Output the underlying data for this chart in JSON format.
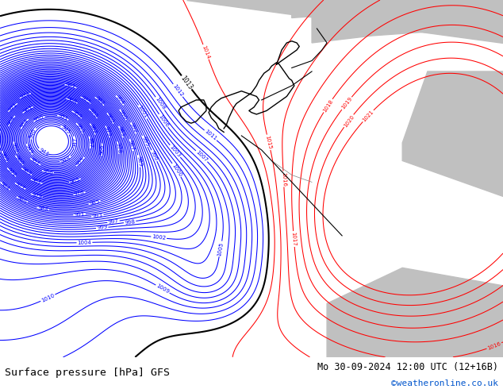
{
  "title_left": "Surface pressure [hPa] GFS",
  "title_right": "Mo 30-09-2024 12:00 UTC (12+16B)",
  "watermark": "©weatheronline.co.uk",
  "watermark_color": "#0055cc",
  "background_color": "#ffffff",
  "map_bg_color": "#b8e090",
  "gray_land_color": "#c0c0c0",
  "blue_contour_color": "#0000ff",
  "red_contour_color": "#ff0000",
  "black_contour_color": "#000000",
  "bottom_bar_color": "#c8c8c8",
  "figsize": [
    6.34,
    4.9
  ],
  "dpi": 100
}
